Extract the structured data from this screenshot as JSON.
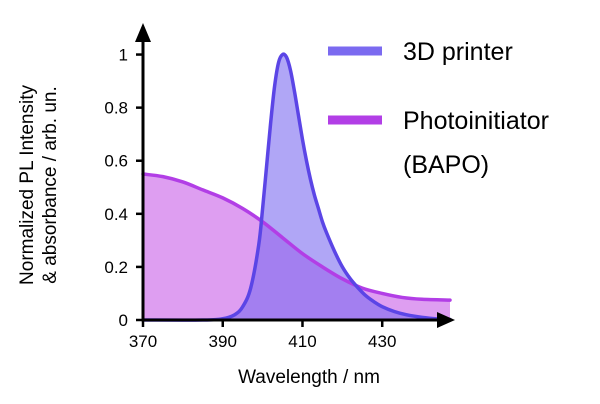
{
  "chart_data": {
    "type": "area",
    "xlabel": "Wavelength / nm",
    "ylabel_line1": "Normalized PL Intensity",
    "ylabel_line2": "& absorbance / arb. un.",
    "xlim": [
      370,
      447
    ],
    "ylim": [
      0,
      1.1
    ],
    "xticks": [
      370,
      390,
      410,
      430
    ],
    "xtick_labels": [
      "370",
      "390",
      "410",
      "430"
    ],
    "yticks": [
      0,
      0.2,
      0.4,
      0.6,
      0.8,
      1
    ],
    "ytick_labels": [
      "0",
      "0.2",
      "0.4",
      "0.6",
      "0.8",
      "1"
    ],
    "legend_position": "top-right",
    "series": [
      {
        "name": "3D printer",
        "legend_label": "3D printer",
        "line_color": "#5b45e6",
        "fill_color": "#7b6af0",
        "x": [
          370,
          385,
          390,
          393,
          395,
          397,
          399,
          400,
          401,
          402,
          403,
          404,
          405,
          406,
          407,
          408,
          409,
          410,
          411,
          412,
          413,
          414,
          415,
          416,
          418,
          420,
          422,
          424,
          426,
          428,
          430,
          433,
          436,
          440,
          444,
          447
        ],
        "y": [
          0.0,
          0.0,
          0.005,
          0.02,
          0.05,
          0.12,
          0.28,
          0.42,
          0.58,
          0.74,
          0.88,
          0.97,
          1.0,
          0.99,
          0.94,
          0.86,
          0.77,
          0.68,
          0.6,
          0.53,
          0.47,
          0.42,
          0.37,
          0.33,
          0.26,
          0.2,
          0.155,
          0.12,
          0.09,
          0.068,
          0.05,
          0.032,
          0.02,
          0.01,
          0.004,
          0.002
        ]
      },
      {
        "name": "Photoinitiator (BAPO)",
        "legend_label_line1": "Photoinitiator",
        "legend_label_line2": "(BAPO)",
        "line_color": "#b23ee6",
        "fill_color": "#c85ee8",
        "x": [
          370,
          375,
          380,
          385,
          390,
          395,
          400,
          405,
          410,
          415,
          420,
          425,
          430,
          435,
          440,
          447
        ],
        "y": [
          0.55,
          0.54,
          0.52,
          0.49,
          0.46,
          0.42,
          0.37,
          0.31,
          0.25,
          0.2,
          0.155,
          0.12,
          0.1,
          0.085,
          0.078,
          0.075
        ]
      }
    ]
  }
}
